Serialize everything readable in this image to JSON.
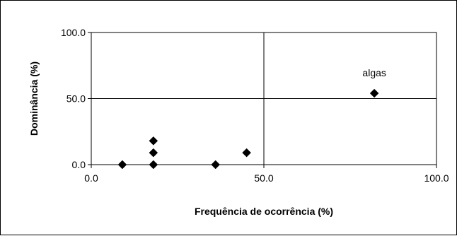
{
  "chart_data": {
    "type": "scatter",
    "xlabel": "Frequência de ocorrência (%)",
    "ylabel": "Dominância (%)",
    "xlim": [
      0,
      100
    ],
    "ylim": [
      0,
      100
    ],
    "x_ticks": [
      0,
      50,
      100
    ],
    "y_ticks": [
      0,
      50,
      100
    ],
    "x_tick_labels": [
      "0.0",
      "50.0",
      "100.0"
    ],
    "y_tick_labels": [
      "0.0",
      "50.0",
      "100.0"
    ],
    "grid": "quadrant lines at x=50 and y=50",
    "marker": "diamond",
    "marker_color": "#000000",
    "points": [
      {
        "x": 9,
        "y": 0
      },
      {
        "x": 18,
        "y": 0
      },
      {
        "x": 18,
        "y": 9
      },
      {
        "x": 18,
        "y": 18
      },
      {
        "x": 36,
        "y": 0
      },
      {
        "x": 45,
        "y": 9
      },
      {
        "x": 82,
        "y": 54,
        "label": "algas"
      }
    ]
  }
}
